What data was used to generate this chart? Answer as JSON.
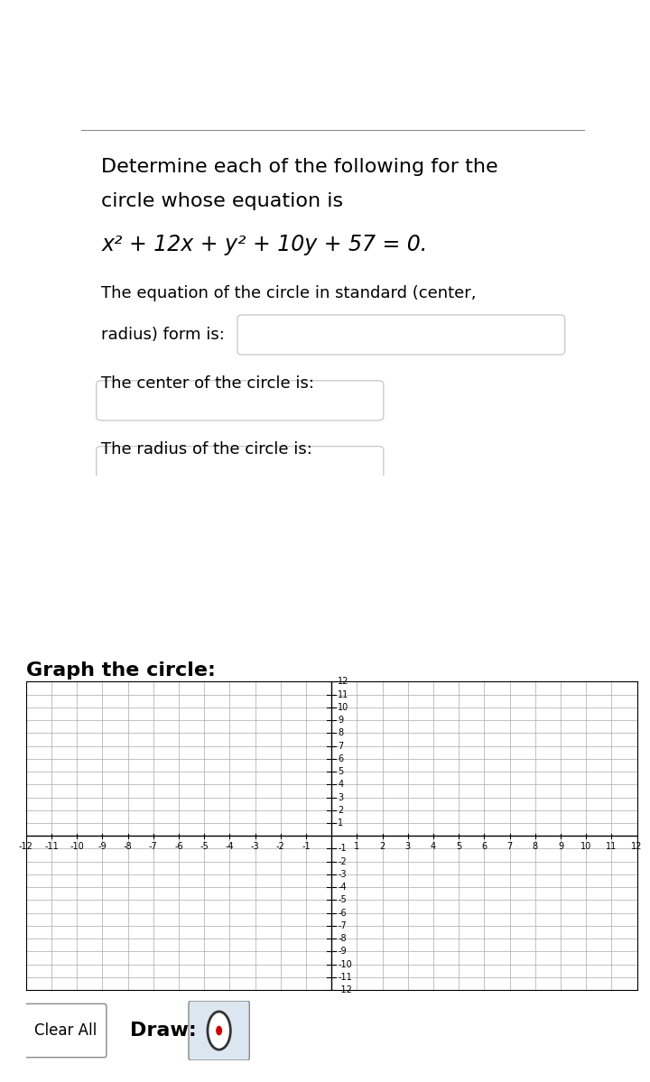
{
  "title_line1": "Determine each of the following for the",
  "title_line2": "circle whose equation is",
  "equation": "x² + 12x + y² + 10y + 57 = 0.",
  "label_standard": "The equation of the circle in standard (center,",
  "label_standard2": "radius) form is:",
  "label_center": "The center of the circle is:",
  "label_radius": "The radius of the circle is:",
  "label_graph": "Graph the circle:",
  "label_clear": "Clear All",
  "label_draw": "Draw:",
  "axis_min": -12,
  "axis_max": 12,
  "grid_color": "#aaaaaa",
  "axis_color": "#000000",
  "bg_color": "#ffffff",
  "text_color": "#000000",
  "box_color": "#cccccc",
  "draw_btn_bg": "#dce6f0",
  "circle_icon_color": "#333333",
  "circle_dot_color": "#cc0000",
  "font_size_title": 16,
  "font_size_label": 13,
  "font_size_graph_title": 16,
  "font_size_axis": 7
}
